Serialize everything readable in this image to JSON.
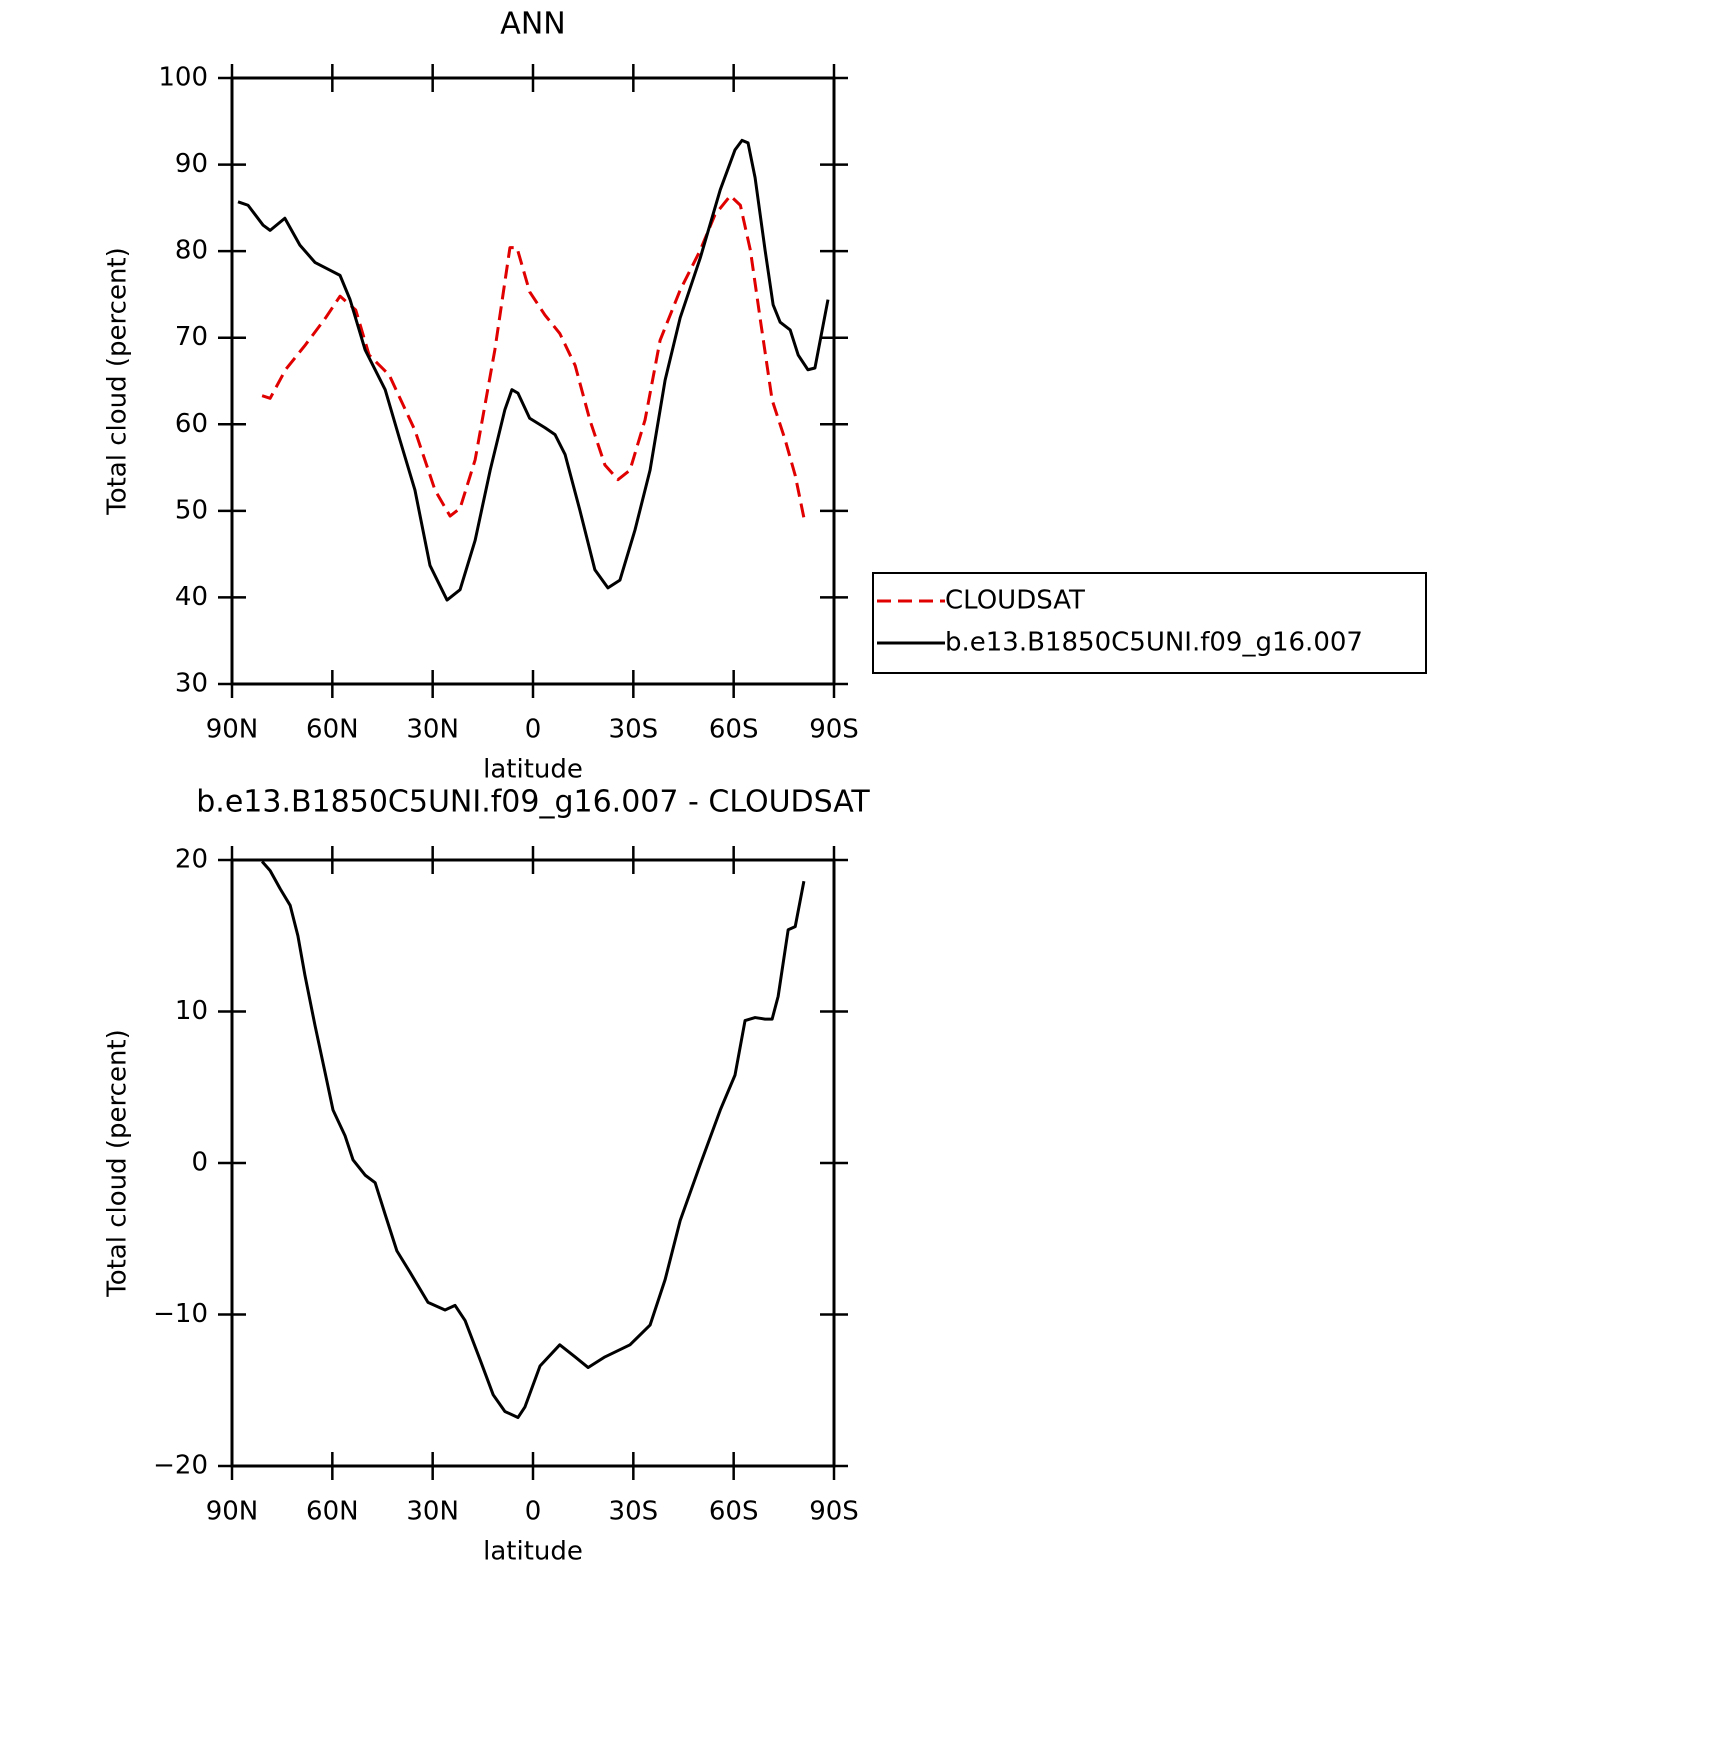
{
  "chart_data": [
    {
      "type": "line",
      "title": "ANN",
      "ylabel": "Total cloud (percent)",
      "xlabel": "latitude",
      "xlim": [
        90,
        -90
      ],
      "ylim": [
        30,
        100
      ],
      "xticks": [
        {
          "value": 90,
          "label": "90N"
        },
        {
          "value": 60,
          "label": "60N"
        },
        {
          "value": 30,
          "label": "30N"
        },
        0,
        {
          "value": -30,
          "label": "30S"
        },
        {
          "value": -60,
          "label": "60S"
        },
        {
          "value": -90,
          "label": "90S"
        }
      ],
      "yticks": [
        30,
        40,
        50,
        60,
        70,
        80,
        90,
        100
      ],
      "legend": "right",
      "series": [
        {
          "name": "CLOUDSAT",
          "color": "#e00000",
          "line_style": "dashed",
          "x": [
            81,
            78.6,
            74,
            68,
            62,
            57.7,
            53,
            49,
            43,
            35.3,
            29.3,
            24.8,
            21.8,
            17.3,
            11.4,
            6.9,
            4.8,
            1,
            -3.6,
            -8,
            -12.6,
            -17,
            -21.5,
            -25.4,
            -29,
            -33.5,
            -38,
            -44,
            -50,
            -54.4,
            -59,
            -62,
            -65,
            -68,
            -71.5,
            -75.4,
            -78.4,
            -81
          ],
          "values": [
            63.3,
            63.0,
            66.3,
            69.2,
            72.3,
            74.8,
            73.2,
            68.0,
            65.7,
            59.3,
            52.4,
            49.4,
            50.3,
            55.9,
            68.6,
            80.4,
            80.4,
            75.3,
            72.6,
            70.5,
            66.8,
            60.5,
            55.3,
            53.6,
            54.7,
            60.5,
            69.7,
            75.5,
            80.1,
            84.2,
            86.4,
            85.3,
            80.1,
            72.0,
            62.8,
            58.2,
            54.1,
            49.2
          ]
        },
        {
          "name": "b.e13.B1850C5UNI.f09_g16.007",
          "color": "#000000",
          "line_style": "solid",
          "x": [
            88.2,
            85.2,
            80.7,
            78.6,
            74.2,
            69.7,
            65.2,
            60.7,
            57.7,
            54.7,
            50.2,
            44.2,
            39.8,
            35.3,
            30.8,
            25.7,
            21.8,
            17.3,
            12.8,
            8.4,
            6.3,
            4.5,
            1,
            -3.6,
            -6.6,
            -9.6,
            -14,
            -18.5,
            -22.4,
            -26,
            -30.5,
            -35,
            -39.5,
            -44,
            -50,
            -56,
            -60.4,
            -62.5,
            -64.3,
            -66.4,
            -69.4,
            -71.8,
            -73.9,
            -76.9,
            -79.3,
            -82.2,
            -84.3,
            -88.2
          ],
          "values": [
            85.7,
            85.3,
            83.0,
            82.4,
            83.8,
            80.7,
            78.7,
            77.8,
            77.2,
            74.4,
            68.6,
            64.0,
            58.2,
            52.4,
            43.7,
            39.7,
            40.9,
            46.6,
            54.7,
            61.7,
            64.0,
            63.6,
            60.7,
            59.6,
            58.8,
            56.5,
            50.1,
            43.2,
            41.1,
            42.0,
            47.8,
            54.7,
            65.1,
            72.3,
            79.2,
            87.1,
            91.7,
            92.8,
            92.5,
            88.5,
            80.1,
            73.8,
            71.8,
            70.9,
            68.0,
            66.3,
            66.5,
            74.4
          ]
        }
      ]
    },
    {
      "type": "line",
      "title": "b.e13.B1850C5UNI.f09_g16.007 - CLOUDSAT",
      "ylabel": "Total cloud (percent)",
      "xlabel": "latitude",
      "xlim": [
        90,
        -90
      ],
      "ylim": [
        -20,
        20
      ],
      "xticks": [
        {
          "value": 90,
          "label": "90N"
        },
        {
          "value": 60,
          "label": "60N"
        },
        {
          "value": 30,
          "label": "30N"
        },
        0,
        {
          "value": -30,
          "label": "30S"
        },
        {
          "value": -60,
          "label": "60S"
        },
        {
          "value": -90,
          "label": "90S"
        }
      ],
      "yticks": [
        {
          "value": -20,
          "label": "−20"
        },
        {
          "value": -10,
          "label": "−10"
        },
        0,
        10,
        20
      ],
      "series": [
        {
          "color": "#000000",
          "line_style": "solid",
          "x": [
            81,
            78.6,
            75.6,
            72.6,
            70.3,
            68.2,
            65.2,
            62.2,
            59.8,
            56.2,
            53.8,
            50.2,
            47.2,
            44.2,
            40.7,
            36.8,
            31.4,
            26.3,
            23.3,
            20.3,
            15.8,
            11.9,
            8.4,
            4.5,
            2.4,
            -2.1,
            -8,
            -12.6,
            -16.5,
            -21.5,
            -29,
            -35,
            -39.5,
            -44,
            -50,
            -56,
            -60.4,
            -63.4,
            -66.4,
            -69.4,
            -71.5,
            -73.3,
            -76.3,
            -78.4,
            -81
          ],
          "values": [
            19.9,
            19.3,
            18.1,
            17.0,
            15.0,
            12.4,
            9.1,
            6.0,
            3.5,
            1.8,
            0.2,
            -0.8,
            -1.3,
            -3.4,
            -5.8,
            -7.2,
            -9.2,
            -9.7,
            -9.4,
            -10.4,
            -13.0,
            -15.3,
            -16.4,
            -16.8,
            -16.1,
            -13.4,
            -12.0,
            -12.8,
            -13.5,
            -12.8,
            -12.0,
            -10.7,
            -7.7,
            -3.8,
            -0.1,
            3.5,
            5.8,
            9.4,
            9.6,
            9.5,
            9.5,
            11.0,
            15.4,
            15.6,
            18.6
          ]
        }
      ]
    }
  ]
}
